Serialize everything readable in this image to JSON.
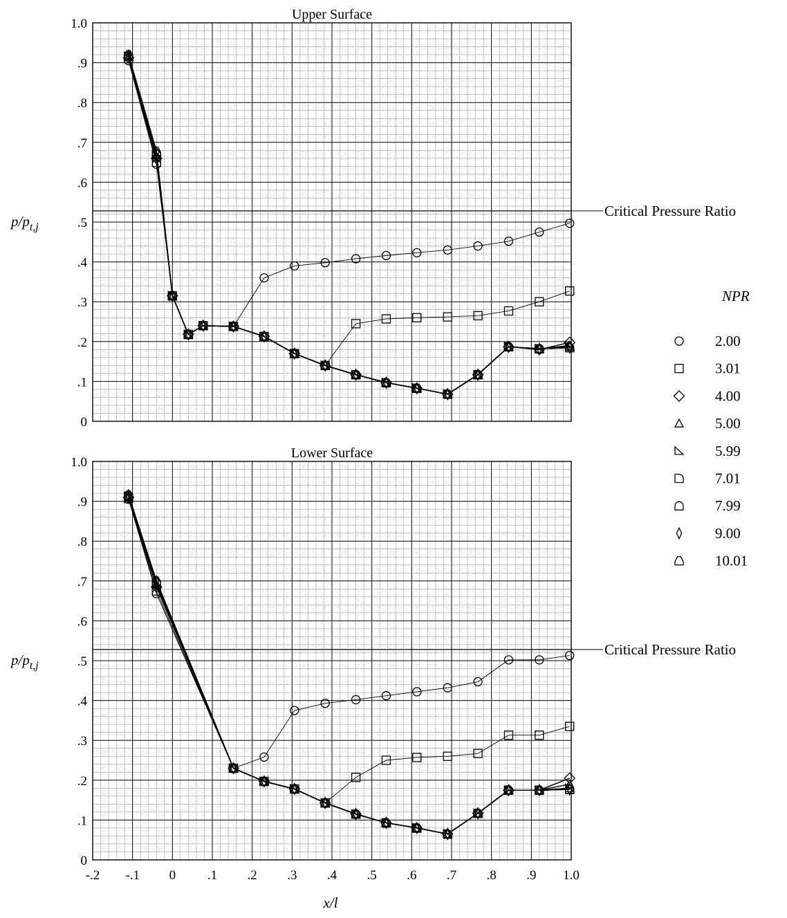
{
  "chart_data": [
    {
      "type": "line",
      "title": "Upper Surface",
      "xlabel": "",
      "ylabel": "p/p",
      "ylabel_sub": "t,j",
      "xlim": [
        -0.2,
        1.0
      ],
      "ylim": [
        0,
        1.0
      ],
      "grid": true,
      "xticks": [],
      "yticks": [
        "0",
        ".1",
        ".2",
        ".3",
        ".4",
        ".5",
        ".6",
        ".7",
        ".8",
        ".9",
        "1.0"
      ],
      "reference_line": {
        "y": 0.528,
        "label": "Critical Pressure Ratio"
      },
      "x": [
        -0.11,
        -0.04,
        0.0,
        0.04,
        0.077,
        0.153,
        0.23,
        0.306,
        0.383,
        0.46,
        0.536,
        0.613,
        0.69,
        0.766,
        0.843,
        0.92,
        0.996
      ],
      "series": [
        {
          "name": "2.00",
          "marker": "circle",
          "values": [
            0.905,
            0.645,
            0.315,
            0.218,
            0.24,
            0.238,
            0.36,
            0.39,
            0.398,
            0.408,
            0.416,
            0.423,
            0.43,
            0.44,
            0.452,
            0.475,
            0.497
          ]
        },
        {
          "name": "3.01",
          "marker": "square",
          "values": [
            0.91,
            0.65,
            0.315,
            0.218,
            0.24,
            0.238,
            0.213,
            0.17,
            0.14,
            0.245,
            0.257,
            0.26,
            0.262,
            0.265,
            0.277,
            0.3,
            0.327
          ]
        },
        {
          "name": "4.00",
          "marker": "diamond",
          "values": [
            0.912,
            0.66,
            0.315,
            0.218,
            0.24,
            0.238,
            0.213,
            0.17,
            0.14,
            0.117,
            0.097,
            0.083,
            0.068,
            0.117,
            0.187,
            0.18,
            0.198
          ]
        },
        {
          "name": "5.00",
          "marker": "triangle",
          "values": [
            0.914,
            0.665,
            0.315,
            0.218,
            0.24,
            0.238,
            0.213,
            0.17,
            0.14,
            0.117,
            0.097,
            0.083,
            0.068,
            0.117,
            0.187,
            0.182,
            0.19
          ]
        },
        {
          "name": "5.99",
          "marker": "triangle-flag",
          "values": [
            0.915,
            0.668,
            0.315,
            0.218,
            0.24,
            0.238,
            0.213,
            0.17,
            0.14,
            0.117,
            0.097,
            0.083,
            0.068,
            0.117,
            0.187,
            0.182,
            0.187
          ]
        },
        {
          "name": "7.01",
          "marker": "d-left",
          "values": [
            0.916,
            0.67,
            0.315,
            0.218,
            0.24,
            0.238,
            0.213,
            0.17,
            0.14,
            0.117,
            0.097,
            0.083,
            0.068,
            0.117,
            0.187,
            0.182,
            0.185
          ]
        },
        {
          "name": "7.99",
          "marker": "d-bottom",
          "values": [
            0.917,
            0.672,
            0.315,
            0.218,
            0.24,
            0.238,
            0.213,
            0.17,
            0.14,
            0.117,
            0.097,
            0.083,
            0.068,
            0.117,
            0.187,
            0.182,
            0.185
          ]
        },
        {
          "name": "9.00",
          "marker": "thin-diamond",
          "values": [
            0.918,
            0.675,
            0.315,
            0.218,
            0.24,
            0.238,
            0.213,
            0.17,
            0.14,
            0.117,
            0.097,
            0.083,
            0.068,
            0.117,
            0.187,
            0.182,
            0.185
          ]
        },
        {
          "name": "10.01",
          "marker": "house",
          "values": [
            0.92,
            0.678,
            0.315,
            0.218,
            0.24,
            0.238,
            0.213,
            0.17,
            0.14,
            0.117,
            0.097,
            0.083,
            0.068,
            0.117,
            0.187,
            0.182,
            0.185
          ]
        }
      ]
    },
    {
      "type": "line",
      "title": "Lower Surface",
      "xlabel": "x/l",
      "ylabel": "p/p",
      "ylabel_sub": "t,j",
      "xlim": [
        -0.2,
        1.0
      ],
      "ylim": [
        0,
        1.0
      ],
      "grid": true,
      "xticks": [
        "-.2",
        "-.1",
        "0",
        ".1",
        ".2",
        ".3",
        ".4",
        ".5",
        ".6",
        ".7",
        ".8",
        ".9",
        "1.0"
      ],
      "yticks": [
        "0",
        ".1",
        ".2",
        ".3",
        ".4",
        ".5",
        ".6",
        ".7",
        ".8",
        ".9",
        "1.0"
      ],
      "reference_line": {
        "y": 0.528,
        "label": "Critical Pressure Ratio"
      },
      "x": [
        -0.11,
        -0.04,
        0.153,
        0.23,
        0.306,
        0.383,
        0.46,
        0.536,
        0.613,
        0.69,
        0.766,
        0.843,
        0.92,
        0.996
      ],
      "series": [
        {
          "name": "2.00",
          "marker": "circle",
          "values": [
            0.905,
            0.668,
            0.23,
            0.258,
            0.375,
            0.393,
            0.402,
            0.412,
            0.422,
            0.432,
            0.447,
            0.502,
            0.502,
            0.513
          ]
        },
        {
          "name": "3.01",
          "marker": "square",
          "values": [
            0.907,
            0.675,
            0.23,
            0.197,
            0.178,
            0.143,
            0.207,
            0.25,
            0.257,
            0.26,
            0.267,
            0.313,
            0.313,
            0.335
          ]
        },
        {
          "name": "4.00",
          "marker": "diamond",
          "values": [
            0.91,
            0.685,
            0.23,
            0.197,
            0.178,
            0.143,
            0.115,
            0.093,
            0.08,
            0.065,
            0.117,
            0.175,
            0.175,
            0.205
          ]
        },
        {
          "name": "5.00",
          "marker": "triangle",
          "values": [
            0.911,
            0.69,
            0.23,
            0.197,
            0.178,
            0.143,
            0.115,
            0.093,
            0.08,
            0.065,
            0.117,
            0.175,
            0.175,
            0.19
          ]
        },
        {
          "name": "5.99",
          "marker": "triangle-flag",
          "values": [
            0.912,
            0.692,
            0.23,
            0.197,
            0.178,
            0.143,
            0.115,
            0.093,
            0.08,
            0.065,
            0.117,
            0.175,
            0.175,
            0.18
          ]
        },
        {
          "name": "7.01",
          "marker": "d-left",
          "values": [
            0.913,
            0.695,
            0.23,
            0.197,
            0.178,
            0.143,
            0.115,
            0.093,
            0.08,
            0.065,
            0.117,
            0.175,
            0.175,
            0.177
          ]
        },
        {
          "name": "7.99",
          "marker": "d-bottom",
          "values": [
            0.914,
            0.697,
            0.23,
            0.197,
            0.178,
            0.143,
            0.115,
            0.093,
            0.08,
            0.065,
            0.117,
            0.175,
            0.175,
            0.177
          ]
        },
        {
          "name": "9.00",
          "marker": "thin-diamond",
          "values": [
            0.915,
            0.699,
            0.23,
            0.197,
            0.178,
            0.143,
            0.115,
            0.093,
            0.08,
            0.065,
            0.117,
            0.175,
            0.175,
            0.177
          ]
        },
        {
          "name": "10.01",
          "marker": "house",
          "values": [
            0.916,
            0.7,
            0.23,
            0.197,
            0.178,
            0.143,
            0.115,
            0.093,
            0.08,
            0.065,
            0.117,
            0.175,
            0.175,
            0.177
          ]
        }
      ]
    }
  ],
  "legend": {
    "title": "NPR",
    "placement": "right",
    "entries": [
      {
        "label": "2.00",
        "marker": "circle"
      },
      {
        "label": "3.01",
        "marker": "square"
      },
      {
        "label": "4.00",
        "marker": "diamond"
      },
      {
        "label": "5.00",
        "marker": "triangle"
      },
      {
        "label": "5.99",
        "marker": "triangle-flag"
      },
      {
        "label": "7.01",
        "marker": "d-left"
      },
      {
        "label": "7.99",
        "marker": "d-bottom"
      },
      {
        "label": "9.00",
        "marker": "thin-diamond"
      },
      {
        "label": "10.01",
        "marker": "house"
      }
    ]
  }
}
